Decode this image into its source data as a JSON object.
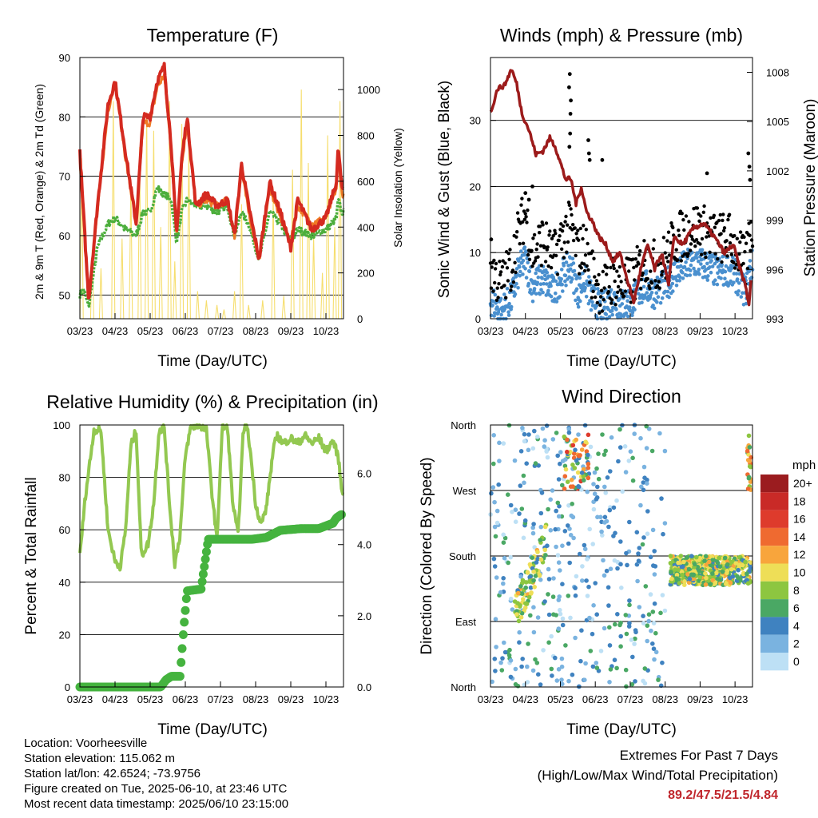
{
  "dates": [
    "03/23",
    "04/23",
    "05/23",
    "06/23",
    "07/23",
    "08/23",
    "09/23",
    "10/23"
  ],
  "chart_data": [
    {
      "type": "line",
      "title": "Temperature (F)",
      "xlabel": "Time (Day/UTC)",
      "ylabel": "2m & 9m T (Red, Orange) & 2m Td (Green)",
      "y2label": "Solar Insolation (Yellow)",
      "x": [
        "03/23",
        "04/23",
        "05/23",
        "06/23",
        "07/23",
        "08/23",
        "09/23",
        "10/23"
      ],
      "ylim": [
        46,
        90
      ],
      "y2lim": [
        0,
        1140
      ],
      "yticks": [
        50,
        60,
        70,
        80,
        90
      ],
      "y2ticks": [
        0,
        200,
        400,
        600,
        800,
        1000
      ],
      "series": [
        {
          "name": "2m T",
          "color": "#d42a20",
          "points": [
            [
              0,
              74
            ],
            [
              0.1,
              64
            ],
            [
              0.25,
              49
            ],
            [
              0.5,
              65
            ],
            [
              0.8,
              82
            ],
            [
              1.0,
              86
            ],
            [
              1.3,
              74
            ],
            [
              1.6,
              62
            ],
            [
              1.8,
              80
            ],
            [
              2.0,
              80
            ],
            [
              2.2,
              86
            ],
            [
              2.4,
              88.5
            ],
            [
              2.6,
              75
            ],
            [
              2.75,
              60
            ],
            [
              2.9,
              73
            ],
            [
              3.05,
              80
            ],
            [
              3.3,
              65
            ],
            [
              3.6,
              67
            ],
            [
              3.9,
              65
            ],
            [
              4.2,
              66
            ],
            [
              4.4,
              60
            ],
            [
              4.6,
              72
            ],
            [
              4.8,
              65
            ],
            [
              5.1,
              56
            ],
            [
              5.4,
              69
            ],
            [
              5.7,
              64
            ],
            [
              6.0,
              58
            ],
            [
              6.2,
              66
            ],
            [
              6.6,
              61
            ],
            [
              7.0,
              63
            ],
            [
              7.3,
              69
            ],
            [
              7.35,
              75
            ],
            [
              7.45,
              68
            ]
          ]
        },
        {
          "name": "9m T",
          "color": "#f07a25",
          "points": [
            [
              0,
              73
            ],
            [
              0.1,
              63
            ],
            [
              0.25,
              50
            ],
            [
              0.5,
              64
            ],
            [
              0.8,
              81
            ],
            [
              1.0,
              86
            ],
            [
              1.3,
              73
            ],
            [
              1.6,
              62
            ],
            [
              1.8,
              79
            ],
            [
              2.0,
              79
            ],
            [
              2.2,
              85
            ],
            [
              2.4,
              87
            ],
            [
              2.6,
              74
            ],
            [
              2.75,
              60
            ],
            [
              2.9,
              72
            ],
            [
              3.05,
              79
            ],
            [
              3.3,
              65
            ],
            [
              3.6,
              66
            ],
            [
              3.9,
              65
            ],
            [
              4.2,
              66
            ],
            [
              4.4,
              60
            ],
            [
              4.6,
              71
            ],
            [
              4.8,
              64
            ],
            [
              5.1,
              56
            ],
            [
              5.4,
              68
            ],
            [
              5.7,
              63
            ],
            [
              6.0,
              59
            ],
            [
              6.2,
              65
            ],
            [
              6.6,
              62
            ],
            [
              7.0,
              63
            ],
            [
              7.3,
              68
            ],
            [
              7.35,
              74
            ],
            [
              7.45,
              67
            ]
          ]
        },
        {
          "name": "2m Td",
          "color": "#4cae3c",
          "points": [
            [
              0,
              50
            ],
            [
              0.1,
              51
            ],
            [
              0.25,
              48
            ],
            [
              0.5,
              58
            ],
            [
              0.8,
              62
            ],
            [
              1.0,
              63
            ],
            [
              1.3,
              61
            ],
            [
              1.6,
              60
            ],
            [
              1.8,
              64
            ],
            [
              2.0,
              64
            ],
            [
              2.2,
              68
            ],
            [
              2.4,
              67
            ],
            [
              2.6,
              66
            ],
            [
              2.75,
              59
            ],
            [
              2.9,
              64
            ],
            [
              3.05,
              66
            ],
            [
              3.3,
              65
            ],
            [
              3.6,
              65
            ],
            [
              3.9,
              64
            ],
            [
              4.2,
              65
            ],
            [
              4.4,
              60
            ],
            [
              4.6,
              64
            ],
            [
              4.8,
              62
            ],
            [
              5.1,
              56
            ],
            [
              5.4,
              64
            ],
            [
              5.7,
              62
            ],
            [
              6.0,
              59
            ],
            [
              6.2,
              61
            ],
            [
              6.6,
              60
            ],
            [
              7.0,
              61
            ],
            [
              7.3,
              63
            ],
            [
              7.35,
              66
            ],
            [
              7.45,
              64
            ]
          ]
        }
      ],
      "solar": {
        "name": "Solar Insolation",
        "color": "#f6de6e",
        "peaks": [
          [
            0.05,
            700
          ],
          [
            0.35,
            300
          ],
          [
            0.6,
            220
          ],
          [
            0.95,
            950
          ],
          [
            1.2,
            350
          ],
          [
            1.45,
            600
          ],
          [
            1.7,
            750
          ],
          [
            1.9,
            900
          ],
          [
            2.1,
            820
          ],
          [
            2.3,
            400
          ],
          [
            2.55,
            950
          ],
          [
            2.7,
            250
          ],
          [
            2.9,
            850
          ],
          [
            3.1,
            780
          ],
          [
            3.35,
            120
          ],
          [
            3.6,
            80
          ],
          [
            3.9,
            60
          ],
          [
            4.1,
            40
          ],
          [
            4.4,
            120
          ],
          [
            4.6,
            500
          ],
          [
            4.8,
            60
          ],
          [
            5.2,
            80
          ],
          [
            5.5,
            520
          ],
          [
            5.8,
            100
          ],
          [
            6.05,
            650
          ],
          [
            6.3,
            1000
          ],
          [
            6.5,
            680
          ],
          [
            6.65,
            360
          ],
          [
            6.9,
            200
          ],
          [
            7.05,
            800
          ],
          [
            7.25,
            400
          ],
          [
            7.4,
            950
          ]
        ]
      }
    },
    {
      "type": "line",
      "title": "Winds (mph) & Pressure (mb)",
      "xlabel": "Time (Day/UTC)",
      "ylabel": "Sonic Wind & Gust (Blue, Black)",
      "y2label": "Station Pressure (Maroon)",
      "x": [
        "03/23",
        "04/23",
        "05/23",
        "06/23",
        "07/23",
        "08/23",
        "09/23",
        "10/23"
      ],
      "ylim": [
        0,
        39.5
      ],
      "y2lim": [
        993,
        1008.9
      ],
      "yticks": [
        0,
        10,
        20,
        30
      ],
      "y2ticks": [
        993,
        996,
        999,
        1002,
        1005,
        1008
      ],
      "series": [
        {
          "name": "Station Pressure",
          "color": "#9c1b1b",
          "points": [
            [
              0,
              1005.5
            ],
            [
              0.2,
              1007
            ],
            [
              0.4,
              1007.2
            ],
            [
              0.6,
              1008.2
            ],
            [
              0.75,
              1007.3
            ],
            [
              0.9,
              1005.5
            ],
            [
              1.1,
              1004.5
            ],
            [
              1.3,
              1003
            ],
            [
              1.5,
              1003.2
            ],
            [
              1.7,
              1004
            ],
            [
              1.85,
              1003.5
            ],
            [
              2.0,
              1002.5
            ],
            [
              2.15,
              1001.5
            ],
            [
              2.3,
              1001.5
            ],
            [
              2.45,
              1000
            ],
            [
              2.6,
              1001
            ],
            [
              2.75,
              999.5
            ],
            [
              2.9,
              999
            ],
            [
              3.1,
              998
            ],
            [
              3.3,
              997.5
            ],
            [
              3.5,
              996.5
            ],
            [
              3.7,
              997
            ],
            [
              3.9,
              995.5
            ],
            [
              4.1,
              994
            ],
            [
              4.3,
              996
            ],
            [
              4.5,
              997.5
            ],
            [
              4.7,
              996
            ],
            [
              4.9,
              997
            ],
            [
              5.1,
              995
            ],
            [
              5.25,
              998
            ],
            [
              5.5,
              997.5
            ],
            [
              5.8,
              998.5
            ],
            [
              6.1,
              998.8
            ],
            [
              6.4,
              998
            ],
            [
              6.7,
              997
            ],
            [
              6.95,
              997.5
            ],
            [
              7.15,
              996
            ],
            [
              7.3,
              995
            ],
            [
              7.4,
              993.8
            ],
            [
              7.47,
              996
            ]
          ]
        },
        {
          "name": "Sonic Wind",
          "color": "#4a90cf",
          "marker": "dot"
        },
        {
          "name": "Gust",
          "color": "#000000",
          "marker": "dot"
        }
      ]
    },
    {
      "type": "line",
      "title": "Relative Humidity (%) & Precipitation (in)",
      "xlabel": "Time (Day/UTC)",
      "ylabel": "Percent & Total Rainfall",
      "x": [
        "03/23",
        "04/23",
        "05/23",
        "06/23",
        "07/23",
        "08/23",
        "09/23",
        "10/23"
      ],
      "ylim": [
        0,
        100
      ],
      "y2lim": [
        0,
        7.36
      ],
      "yticks": [
        0,
        20,
        40,
        60,
        80,
        100
      ],
      "y2ticks": [
        0,
        2,
        4,
        6
      ],
      "y2ticklabels": [
        "0.0",
        "2.0",
        "4.0",
        "6.0"
      ],
      "series": [
        {
          "name": "Relative Humidity",
          "color": "#93c851",
          "points": [
            [
              0,
              50
            ],
            [
              0.15,
              72
            ],
            [
              0.4,
              98
            ],
            [
              0.6,
              98
            ],
            [
              0.8,
              60
            ],
            [
              1.0,
              48
            ],
            [
              1.15,
              46
            ],
            [
              1.3,
              60
            ],
            [
              1.45,
              92
            ],
            [
              1.6,
              98
            ],
            [
              1.75,
              50
            ],
            [
              1.95,
              55
            ],
            [
              2.1,
              70
            ],
            [
              2.25,
              98
            ],
            [
              2.4,
              99
            ],
            [
              2.55,
              70
            ],
            [
              2.7,
              47
            ],
            [
              2.85,
              58
            ],
            [
              3.0,
              88
            ],
            [
              3.15,
              99
            ],
            [
              3.4,
              100
            ],
            [
              3.6,
              98
            ],
            [
              3.75,
              75
            ],
            [
              3.9,
              56
            ],
            [
              4.05,
              99
            ],
            [
              4.2,
              99
            ],
            [
              4.35,
              70
            ],
            [
              4.5,
              58
            ],
            [
              4.65,
              98
            ],
            [
              4.75,
              100
            ],
            [
              4.85,
              90
            ],
            [
              5.0,
              70
            ],
            [
              5.15,
              62
            ],
            [
              5.3,
              68
            ],
            [
              5.5,
              90
            ],
            [
              5.6,
              96
            ],
            [
              5.8,
              93
            ],
            [
              6.0,
              95
            ],
            [
              6.2,
              93
            ],
            [
              6.4,
              96
            ],
            [
              6.6,
              93
            ],
            [
              6.8,
              95
            ],
            [
              7.0,
              90
            ],
            [
              7.2,
              94
            ],
            [
              7.35,
              88
            ],
            [
              7.45,
              75
            ]
          ]
        },
        {
          "name": "Total Rainfall",
          "color": "#45b33f",
          "points": [
            [
              0,
              0
            ],
            [
              2.3,
              0
            ],
            [
              2.45,
              0.2
            ],
            [
              2.6,
              0.3
            ],
            [
              2.85,
              0.3
            ],
            [
              2.95,
              1.6
            ],
            [
              3.05,
              2.7
            ],
            [
              3.45,
              2.75
            ],
            [
              3.65,
              4.15
            ],
            [
              4.9,
              4.15
            ],
            [
              5.3,
              4.2
            ],
            [
              5.7,
              4.4
            ],
            [
              6.3,
              4.45
            ],
            [
              6.8,
              4.45
            ],
            [
              7.2,
              4.6
            ],
            [
              7.3,
              4.75
            ],
            [
              7.45,
              4.85
            ]
          ]
        }
      ]
    },
    {
      "type": "scatter",
      "title": "Wind Direction",
      "xlabel": "Time (Day/UTC)",
      "ylabel": "Direction (Colored By Speed)",
      "x": [
        "03/23",
        "04/23",
        "05/23",
        "06/23",
        "07/23",
        "08/23",
        "09/23",
        "10/23"
      ],
      "ydirections": [
        "North",
        "East",
        "South",
        "West",
        "North"
      ],
      "colorbar": {
        "title": "mph",
        "labels": [
          "20+",
          "18",
          "16",
          "14",
          "12",
          "10",
          "8",
          "6",
          "4",
          "2",
          "0"
        ],
        "colors": [
          "#9b1c1f",
          "#c92a27",
          "#de3b2c",
          "#ef6a30",
          "#f8a53c",
          "#eede57",
          "#8dc640",
          "#4aa864",
          "#3f82c0",
          "#7ab3e0",
          "#bde0f5"
        ]
      }
    }
  ],
  "info": {
    "location": "Location: Voorheesville",
    "elevation": "Station elevation: 115.062 m",
    "latlon": "Station lat/lon: 42.6524; -73.9756",
    "created": "Figure created on Tue, 2025-06-10, at 23:46 UTC",
    "timestamp": "Most recent data timestamp: 2025/06/10 23:15:00"
  },
  "extremes": {
    "title": "Extremes For Past 7 Days",
    "subtitle": "(High/Low/Max Wind/Total Precipitation)",
    "values": "89.2/47.5/21.5/4.84"
  }
}
